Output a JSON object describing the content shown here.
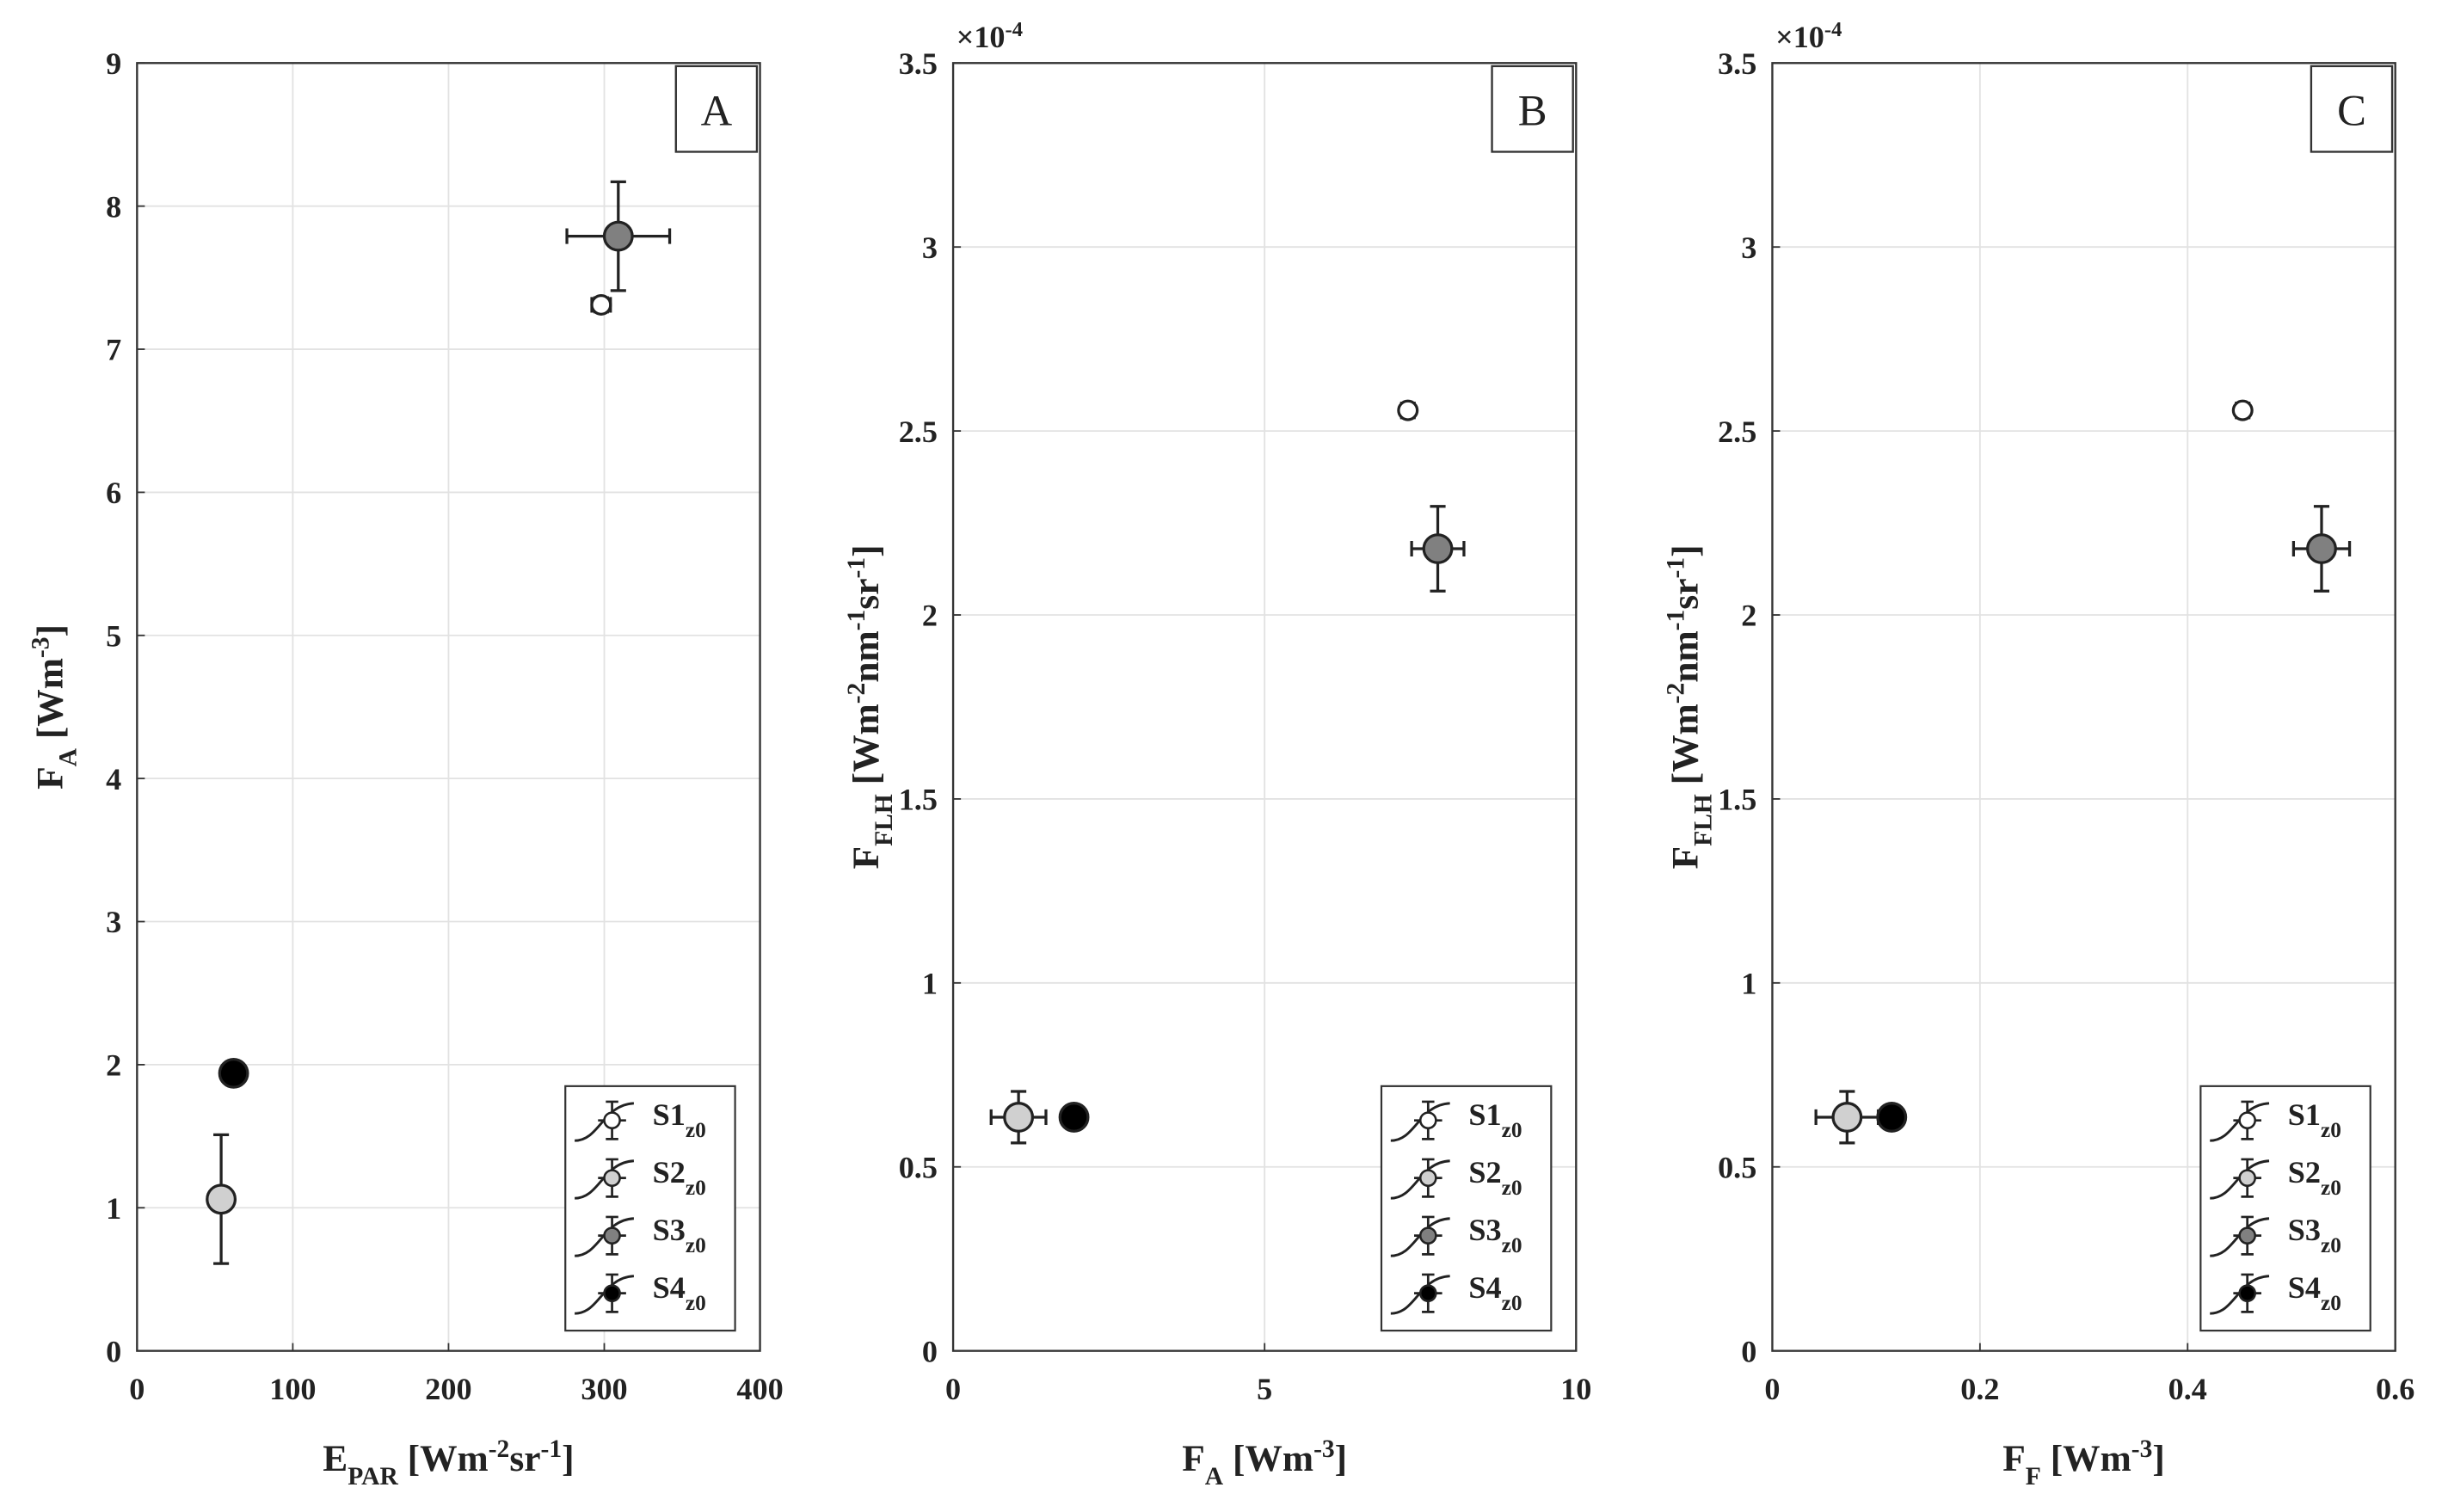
{
  "chart_data": [
    {
      "type": "scatter",
      "panel_label": "A",
      "xlabel": [
        {
          "text": "E"
        },
        {
          "text": "PAR",
          "shift": "sub"
        },
        {
          "text": " [Wm"
        },
        {
          "text": "-2",
          "shift": "super"
        },
        {
          "text": "sr"
        },
        {
          "text": "-1",
          "shift": "super"
        },
        {
          "text": "]"
        }
      ],
      "ylabel": [
        {
          "text": "F"
        },
        {
          "text": "A",
          "shift": "sub"
        },
        {
          "text": " [Wm"
        },
        {
          "text": "-3",
          "shift": "super"
        },
        {
          "text": "]"
        }
      ],
      "xlim": [
        0,
        400
      ],
      "xticks": [
        0,
        100,
        200,
        300,
        400
      ],
      "ylim": [
        0,
        9
      ],
      "yticks": [
        0,
        1,
        2,
        3,
        4,
        5,
        6,
        7,
        8,
        9
      ],
      "grid": true,
      "legend": "lower right",
      "series": [
        {
          "name": "S1",
          "subscript": "z0",
          "color": "#ffffff",
          "marker_size": 6,
          "x": [
            298
          ],
          "y": [
            7.31
          ],
          "xerr": [
            6
          ],
          "yerr": [
            0.05
          ]
        },
        {
          "name": "S2",
          "subscript": "z0",
          "color": "#d0d0d0",
          "marker_size": 9,
          "x": [
            54
          ],
          "y": [
            1.06
          ],
          "xerr": [
            null
          ],
          "yerr": [
            0.45
          ]
        },
        {
          "name": "S3",
          "subscript": "z0",
          "color": "#808080",
          "marker_size": 9,
          "x": [
            309
          ],
          "y": [
            7.79
          ],
          "xerr": [
            33
          ],
          "yerr": [
            0.38
          ]
        },
        {
          "name": "S4",
          "subscript": "z0",
          "color": "#000000",
          "marker_size": 9,
          "x": [
            62
          ],
          "y": [
            1.94
          ],
          "xerr": [
            null
          ],
          "yerr": [
            null
          ]
        }
      ]
    },
    {
      "type": "scatter",
      "panel_label": "B",
      "xlabel": [
        {
          "text": "F"
        },
        {
          "text": "A",
          "shift": "sub"
        },
        {
          "text": " [Wm"
        },
        {
          "text": "-3",
          "shift": "super"
        },
        {
          "text": "]"
        }
      ],
      "ylabel": [
        {
          "text": "F"
        },
        {
          "text": "FLH",
          "shift": "sub"
        },
        {
          "text": " [Wm"
        },
        {
          "text": "-2",
          "shift": "super"
        },
        {
          "text": "nm"
        },
        {
          "text": "-1",
          "shift": "super"
        },
        {
          "text": "sr"
        },
        {
          "text": "-1",
          "shift": "super"
        },
        {
          "text": "]"
        }
      ],
      "y_multiplier": [
        {
          "text": "×10"
        },
        {
          "text": "-4",
          "shift": "super"
        }
      ],
      "xlim": [
        0,
        10
      ],
      "xticks": [
        0,
        5,
        10
      ],
      "ylim": [
        0,
        3.5
      ],
      "yticks": [
        0,
        0.5,
        1,
        1.5,
        2,
        2.5,
        3,
        3.5
      ],
      "grid": true,
      "legend": "lower right",
      "series": [
        {
          "name": "S1",
          "subscript": "z0",
          "color": "#ffffff",
          "marker_size": 6,
          "x": [
            7.3
          ],
          "y": [
            2.556
          ],
          "xerr": [
            0.1
          ],
          "yerr": [
            0.02
          ]
        },
        {
          "name": "S2",
          "subscript": "z0",
          "color": "#d0d0d0",
          "marker_size": 9,
          "x": [
            1.05
          ],
          "y": [
            0.635
          ],
          "xerr": [
            0.44
          ],
          "yerr": [
            0.07
          ]
        },
        {
          "name": "S3",
          "subscript": "z0",
          "color": "#808080",
          "marker_size": 9,
          "x": [
            7.78
          ],
          "y": [
            2.18
          ],
          "xerr": [
            0.42
          ],
          "yerr": [
            0.115
          ]
        },
        {
          "name": "S4",
          "subscript": "z0",
          "color": "#000000",
          "marker_size": 9,
          "x": [
            1.94
          ],
          "y": [
            0.635
          ],
          "xerr": [
            null
          ],
          "yerr": [
            null
          ]
        }
      ]
    },
    {
      "type": "scatter",
      "panel_label": "C",
      "xlabel": [
        {
          "text": "F"
        },
        {
          "text": "F",
          "shift": "sub"
        },
        {
          "text": " [Wm"
        },
        {
          "text": "-3",
          "shift": "super"
        },
        {
          "text": "]"
        }
      ],
      "ylabel": [
        {
          "text": "F"
        },
        {
          "text": "FLH",
          "shift": "sub"
        },
        {
          "text": " [Wm"
        },
        {
          "text": "-2",
          "shift": "super"
        },
        {
          "text": "nm"
        },
        {
          "text": "-1",
          "shift": "super"
        },
        {
          "text": "sr"
        },
        {
          "text": "-1",
          "shift": "super"
        },
        {
          "text": "]"
        }
      ],
      "y_multiplier": [
        {
          "text": "×10"
        },
        {
          "text": "-4",
          "shift": "super"
        }
      ],
      "xlim": [
        0,
        0.6
      ],
      "xticks": [
        0,
        0.2,
        0.4,
        0.6
      ],
      "ylim": [
        0,
        3.5
      ],
      "yticks": [
        0,
        0.5,
        1,
        1.5,
        2,
        2.5,
        3,
        3.5
      ],
      "grid": true,
      "legend": "lower right",
      "series": [
        {
          "name": "S1",
          "subscript": "z0",
          "color": "#ffffff",
          "marker_size": 6,
          "x": [
            0.453
          ],
          "y": [
            2.556
          ],
          "xerr": [
            0.005
          ],
          "yerr": [
            0.02
          ]
        },
        {
          "name": "S2",
          "subscript": "z0",
          "color": "#d0d0d0",
          "marker_size": 9,
          "x": [
            0.072
          ],
          "y": [
            0.635
          ],
          "xerr": [
            0.03
          ],
          "yerr": [
            0.07
          ]
        },
        {
          "name": "S3",
          "subscript": "z0",
          "color": "#808080",
          "marker_size": 9,
          "x": [
            0.529
          ],
          "y": [
            2.18
          ],
          "xerr": [
            0.027
          ],
          "yerr": [
            0.115
          ]
        },
        {
          "name": "S4",
          "subscript": "z0",
          "color": "#000000",
          "marker_size": 9,
          "x": [
            0.115
          ],
          "y": [
            0.635
          ],
          "xerr": [
            null
          ],
          "yerr": [
            null
          ]
        }
      ]
    }
  ]
}
